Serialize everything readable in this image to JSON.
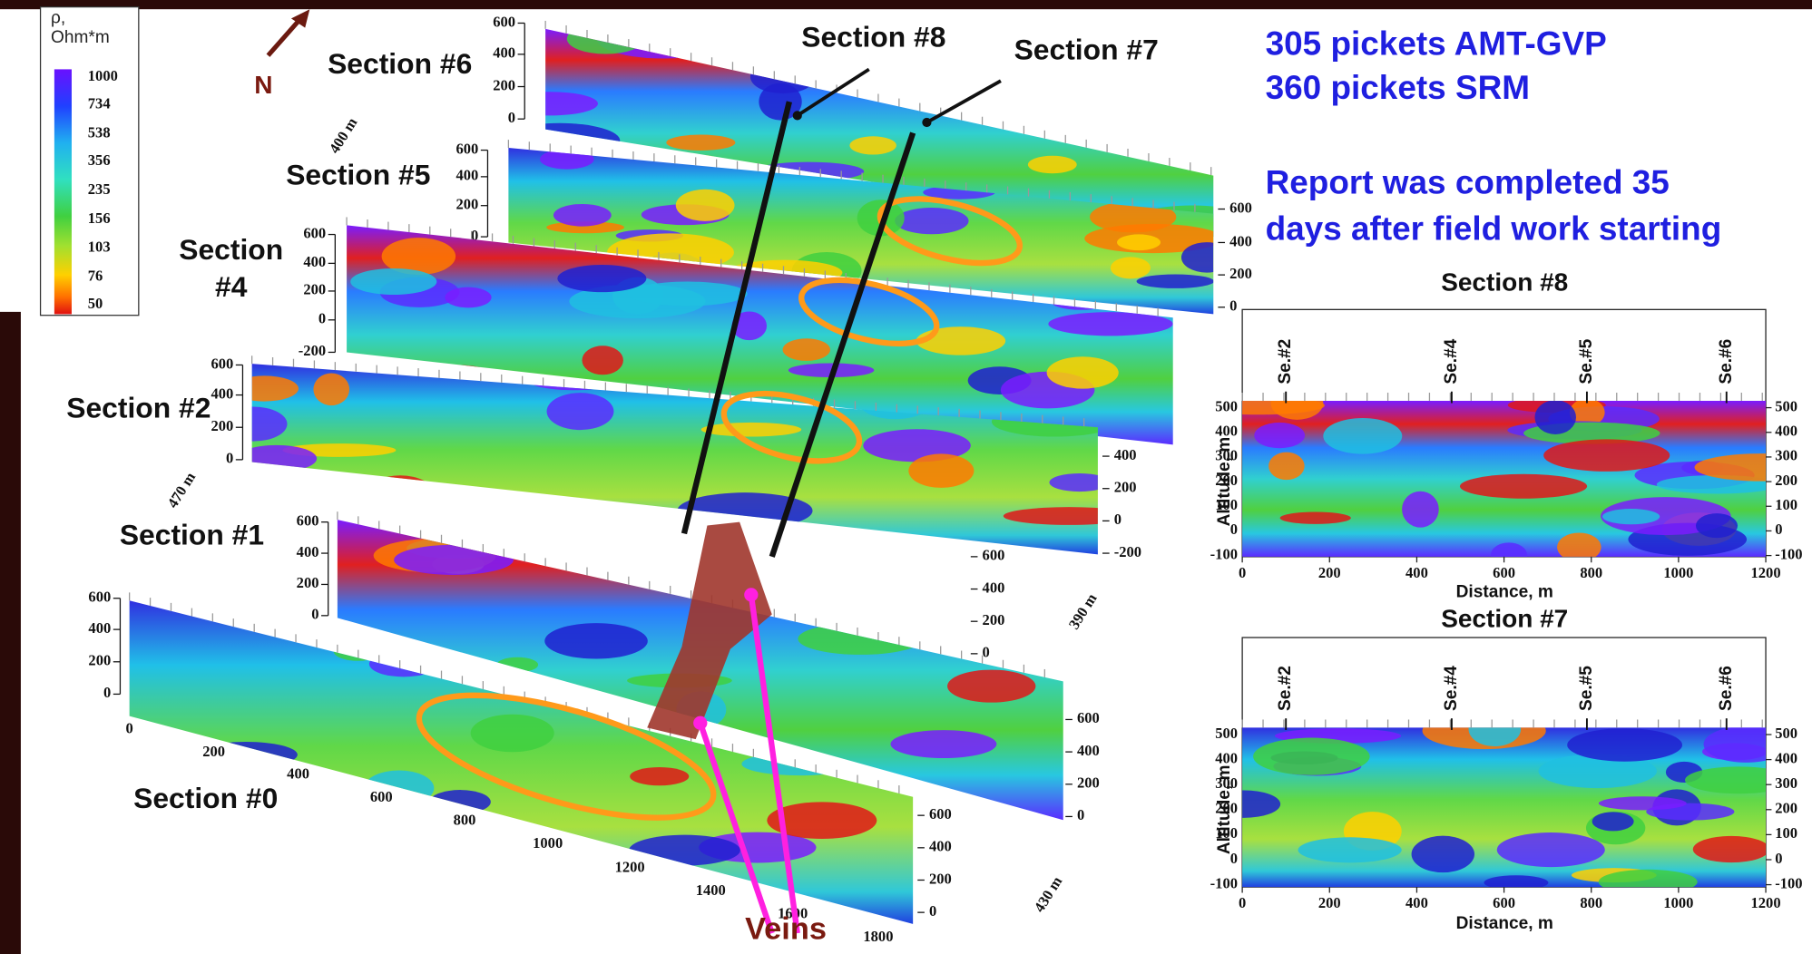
{
  "legend": {
    "title_lines": [
      "ρ,",
      "Ohm*m"
    ],
    "values": [
      1000,
      734,
      538,
      356,
      235,
      156,
      103,
      76,
      50
    ]
  },
  "north": "N",
  "sections": [
    {
      "name_lines": [
        "Section #6"
      ],
      "left_ticks": [
        600,
        400,
        200,
        0
      ]
    },
    {
      "name_lines": [
        "Section #5"
      ],
      "left_ticks": [
        600,
        400,
        200,
        0
      ]
    },
    {
      "name_lines": [
        "Section",
        "#4"
      ],
      "left_ticks": [
        600,
        400,
        200,
        0,
        -200
      ]
    },
    {
      "name_lines": [
        "Section #2"
      ],
      "left_ticks": [
        600,
        400,
        200,
        0
      ]
    },
    {
      "name_lines": [
        "Section #1"
      ],
      "left_ticks": [
        600,
        400,
        200,
        0
      ]
    },
    {
      "name_lines": [
        "Section #0"
      ],
      "left_ticks": [
        600,
        400,
        200,
        0
      ]
    }
  ],
  "right_tick_groups": [
    [
      600,
      400,
      200,
      0
    ],
    [
      400,
      200,
      0,
      -200
    ],
    [
      600,
      400,
      200,
      0
    ],
    [
      600,
      400,
      200,
      0
    ],
    [
      600,
      400,
      200,
      0
    ]
  ],
  "section0_x_ticks": [
    0,
    200,
    400,
    600,
    800,
    1000,
    1200,
    1400,
    1600,
    1800
  ],
  "distances": [
    "400 m",
    "470 m",
    "390 m",
    "430 m"
  ],
  "cross_sections": [
    "Section #8",
    "Section #7"
  ],
  "info": [
    "305 pickets AMT-GVP",
    "360 pickets SRM",
    "Report was completed 35",
    "days after field work starting"
  ],
  "veins": "Veins",
  "profiles": [
    {
      "title": "Section #8",
      "y_label": "Altitude, m",
      "x_label": "Distance, m",
      "yticks": [
        500,
        400,
        300,
        200,
        100,
        0,
        -100
      ],
      "xticks": [
        0,
        200,
        400,
        600,
        800,
        1000,
        1200
      ],
      "markers": [
        "Se.#2",
        "Se.#4",
        "Se.#5",
        "Se.#6"
      ]
    },
    {
      "title": "Section #7",
      "y_label": "Altitude, m",
      "x_label": "Distance, m",
      "yticks": [
        500,
        400,
        300,
        200,
        100,
        0,
        -100
      ],
      "xticks": [
        0,
        200,
        400,
        600,
        800,
        1000,
        1200
      ],
      "markers": [
        "Se.#2",
        "Se.#4",
        "Se.#5",
        "Se.#6"
      ]
    }
  ]
}
